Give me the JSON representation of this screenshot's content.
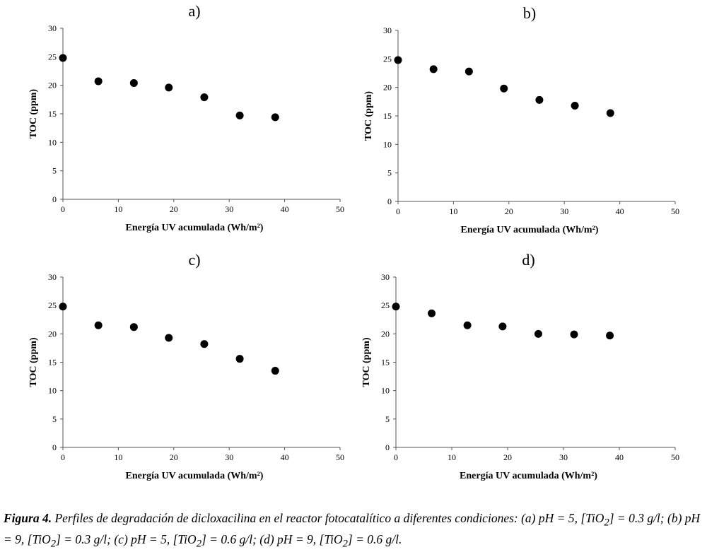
{
  "chart_data": [
    {
      "type": "scatter",
      "panel_label": "a)",
      "xlabel": "Energía UV acumulada (Wh/m²)",
      "ylabel": "TOC (ppm)",
      "xlim": [
        0,
        50
      ],
      "ylim": [
        0,
        30
      ],
      "xticks": [
        "0",
        "10",
        "20",
        "30",
        "40",
        "50"
      ],
      "yticks": [
        "0",
        "5",
        "10",
        "15",
        "20",
        "25",
        "30"
      ],
      "grid": false,
      "x": [
        0,
        6.4,
        12.8,
        19.1,
        25.5,
        31.9,
        38.3
      ],
      "y": [
        24.8,
        20.7,
        20.4,
        19.6,
        17.9,
        14.7,
        14.4
      ]
    },
    {
      "type": "scatter",
      "panel_label": "b)",
      "xlabel": "Energía UV acumulada (Wh/m²)",
      "ylabel": "TOC (ppm)",
      "xlim": [
        0,
        50
      ],
      "ylim": [
        0,
        30
      ],
      "xticks": [
        "0",
        "10",
        "20",
        "30",
        "40",
        "50"
      ],
      "yticks": [
        "0",
        "5",
        "10",
        "15",
        "20",
        "25",
        "30"
      ],
      "grid": false,
      "x": [
        0,
        6.4,
        12.8,
        19.1,
        25.5,
        31.9,
        38.3
      ],
      "y": [
        24.8,
        23.2,
        22.8,
        19.8,
        17.8,
        16.8,
        15.5
      ]
    },
    {
      "type": "scatter",
      "panel_label": "c)",
      "xlabel": "Energía UV acumulada (Wh/m²)",
      "ylabel": "TOC (ppm)",
      "xlim": [
        0,
        50
      ],
      "ylim": [
        0,
        30
      ],
      "xticks": [
        "0",
        "10",
        "20",
        "30",
        "40",
        "50"
      ],
      "yticks": [
        "0",
        "5",
        "10",
        "15",
        "20",
        "25",
        "30"
      ],
      "grid": false,
      "x": [
        0,
        6.4,
        12.8,
        19.1,
        25.5,
        31.9,
        38.3
      ],
      "y": [
        24.8,
        21.5,
        21.2,
        19.3,
        18.2,
        15.6,
        13.5
      ]
    },
    {
      "type": "scatter",
      "panel_label": "d)",
      "xlabel": "Energía UV acumulada (Wh/m²)",
      "ylabel": "TOC (ppm)",
      "xlim": [
        0,
        50
      ],
      "ylim": [
        0,
        30
      ],
      "xticks": [
        "0",
        "10",
        "20",
        "30",
        "40",
        "50"
      ],
      "yticks": [
        "0",
        "5",
        "10",
        "15",
        "20",
        "25",
        "30"
      ],
      "grid": false,
      "x": [
        0,
        6.4,
        12.8,
        19.1,
        25.5,
        31.9,
        38.3
      ],
      "y": [
        24.8,
        23.6,
        21.5,
        21.3,
        20.0,
        19.9,
        19.7
      ]
    }
  ],
  "caption": {
    "label": "Figura 4.",
    "text_1": " Perfiles de degradación de dicloxacilina en el reactor fotocatalítico a diferentes condiciones: (a) pH = 5, [TiO",
    "sub": "2",
    "text_2": "] = 0.3 g/l; (b) pH = 9, [TiO",
    "text_3": "] = 0.3 g/l; (c) pH = 5, [TiO",
    "text_4": "] = 0.6 g/l; (d) pH = 9, [TiO",
    "text_5": "] = 0.6 g/l."
  }
}
